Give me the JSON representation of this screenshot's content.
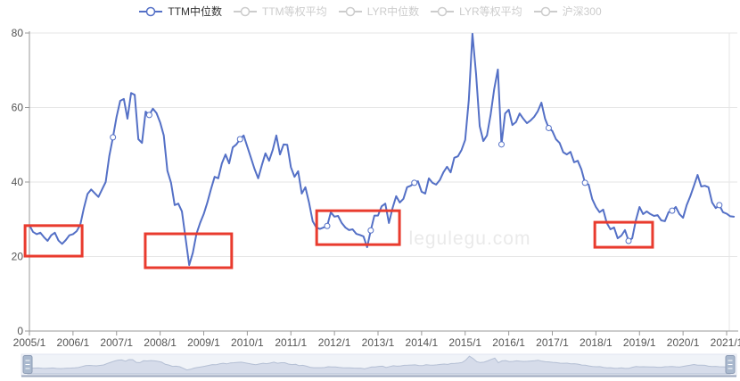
{
  "legend": {
    "items": [
      {
        "key": "ttm-median",
        "label": "TTM中位数",
        "active": true
      },
      {
        "key": "ttm-equal-weight",
        "label": "TTM等权平均",
        "active": false
      },
      {
        "key": "lyr-median",
        "label": "LYR中位数",
        "active": false
      },
      {
        "key": "lyr-equal-weight",
        "label": "LYR等权平均",
        "active": false
      },
      {
        "key": "hs300",
        "label": "沪深300",
        "active": false
      }
    ]
  },
  "watermark": "legulegu.com",
  "colors": {
    "line": "#5470c6",
    "inactive": "#cccccc",
    "legend_text": "#333333",
    "highlight": "#e93b2e",
    "axis": "#999999",
    "grid": "#e6e6e6",
    "label": "#555555",
    "watermark": "#eaeaea",
    "slider_bg": "#f0f3f8",
    "slider_border": "#e2e6ef",
    "slider_fill": "#d6dcea",
    "slider_stroke": "#b4bfd4",
    "slider_handle": "#aab9ce",
    "slider_handle_border": "#8d9cb5",
    "slider_bottom": "#9aa6bd"
  },
  "chart_data": {
    "type": "line",
    "title": "",
    "xlabel": "",
    "ylabel": "",
    "x_start": "2005/1",
    "x_frequency": "monthly",
    "x_tick_labels": [
      "2005/1",
      "2006/1",
      "2007/1",
      "2008/1",
      "2009/1",
      "2010/1",
      "2011/1",
      "2012/1",
      "2013/1",
      "2014/1",
      "2015/1",
      "2016/1",
      "2017/1",
      "2018/1",
      "2019/1",
      "2020/1",
      "2021/1"
    ],
    "ylim": [
      0,
      80
    ],
    "y_ticks": [
      0,
      20,
      40,
      60,
      80
    ],
    "grid": true,
    "legend_position": "top-center",
    "series": [
      {
        "name": "TTM中位数",
        "values": [
          28.4,
          26.6,
          26.0,
          26.4,
          25.2,
          24.2,
          25.7,
          26.4,
          24.3,
          23.4,
          24.4,
          25.7,
          26.0,
          26.8,
          28.5,
          33.0,
          36.8,
          38.0,
          37.0,
          36.0,
          38.0,
          40.0,
          47.0,
          52.0,
          57.5,
          61.8,
          62.3,
          57.0,
          63.9,
          63.4,
          51.5,
          50.5,
          58.9,
          58.0,
          59.7,
          58.5,
          56.0,
          52.5,
          43.0,
          39.8,
          33.8,
          34.2,
          32.1,
          24.9,
          17.7,
          21.0,
          26.1,
          29.0,
          31.4,
          34.5,
          38.1,
          41.4,
          41.0,
          45.0,
          47.4,
          45.0,
          49.3,
          50.1,
          51.5,
          52.5,
          49.5,
          46.5,
          43.5,
          41.0,
          44.5,
          47.7,
          45.7,
          48.6,
          52.5,
          47.4,
          50.1,
          50.0,
          44.0,
          41.4,
          42.9,
          36.9,
          38.6,
          34.5,
          29.5,
          27.8,
          27.4,
          27.8,
          28.2,
          31.9,
          30.7,
          30.9,
          29.0,
          27.8,
          27.1,
          27.3,
          26.1,
          25.8,
          25.4,
          22.5,
          27.0,
          31.0,
          31.0,
          33.5,
          34.2,
          29.0,
          33.0,
          36.2,
          34.5,
          35.5,
          38.6,
          39.0,
          39.8,
          40.2,
          37.4,
          36.9,
          41.0,
          39.8,
          39.3,
          40.5,
          42.6,
          44.1,
          42.6,
          46.5,
          46.9,
          48.6,
          51.3,
          62.0,
          79.8,
          69.0,
          55.0,
          51.0,
          52.5,
          58.0,
          65.0,
          70.2,
          50.1,
          58.4,
          59.4,
          55.3,
          56.1,
          58.4,
          57.0,
          55.8,
          56.5,
          57.5,
          59.0,
          61.3,
          57.0,
          54.5,
          53.7,
          51.5,
          50.5,
          48.0,
          47.4,
          48.1,
          45.3,
          45.7,
          43.4,
          39.8,
          39.3,
          35.4,
          33.3,
          31.9,
          32.6,
          29.0,
          27.3,
          27.8,
          24.9,
          25.6,
          27.1,
          24.2,
          24.9,
          29.7,
          33.3,
          31.4,
          32.1,
          31.4,
          30.9,
          31.1,
          29.7,
          29.5,
          31.9,
          32.3,
          33.3,
          31.4,
          30.4,
          33.8,
          36.2,
          39.0,
          41.9,
          38.8,
          39.0,
          38.6,
          34.5,
          33.0,
          33.8,
          31.9,
          31.5,
          30.8,
          30.7
        ]
      }
    ],
    "inactive_series_names": [
      "TTM等权平均",
      "LYR中位数",
      "LYR等权平均",
      "沪深300"
    ],
    "marker_indices": [
      23,
      33,
      58,
      82,
      94,
      106,
      130,
      143,
      153,
      165,
      177,
      190
    ],
    "highlight_boxes": [
      {
        "from_idx": -1.2,
        "to_idx": 14.5,
        "low": 20.1,
        "high": 28.3
      },
      {
        "from_idx": 31.9,
        "to_idx": 55.7,
        "low": 17.0,
        "high": 26.1
      },
      {
        "from_idx": 79.1,
        "to_idx": 101.9,
        "low": 23.2,
        "high": 32.3
      },
      {
        "from_idx": 155.7,
        "to_idx": 171.6,
        "low": 22.5,
        "high": 29.2
      }
    ],
    "datazoom": {
      "range_selected": "100%"
    }
  }
}
